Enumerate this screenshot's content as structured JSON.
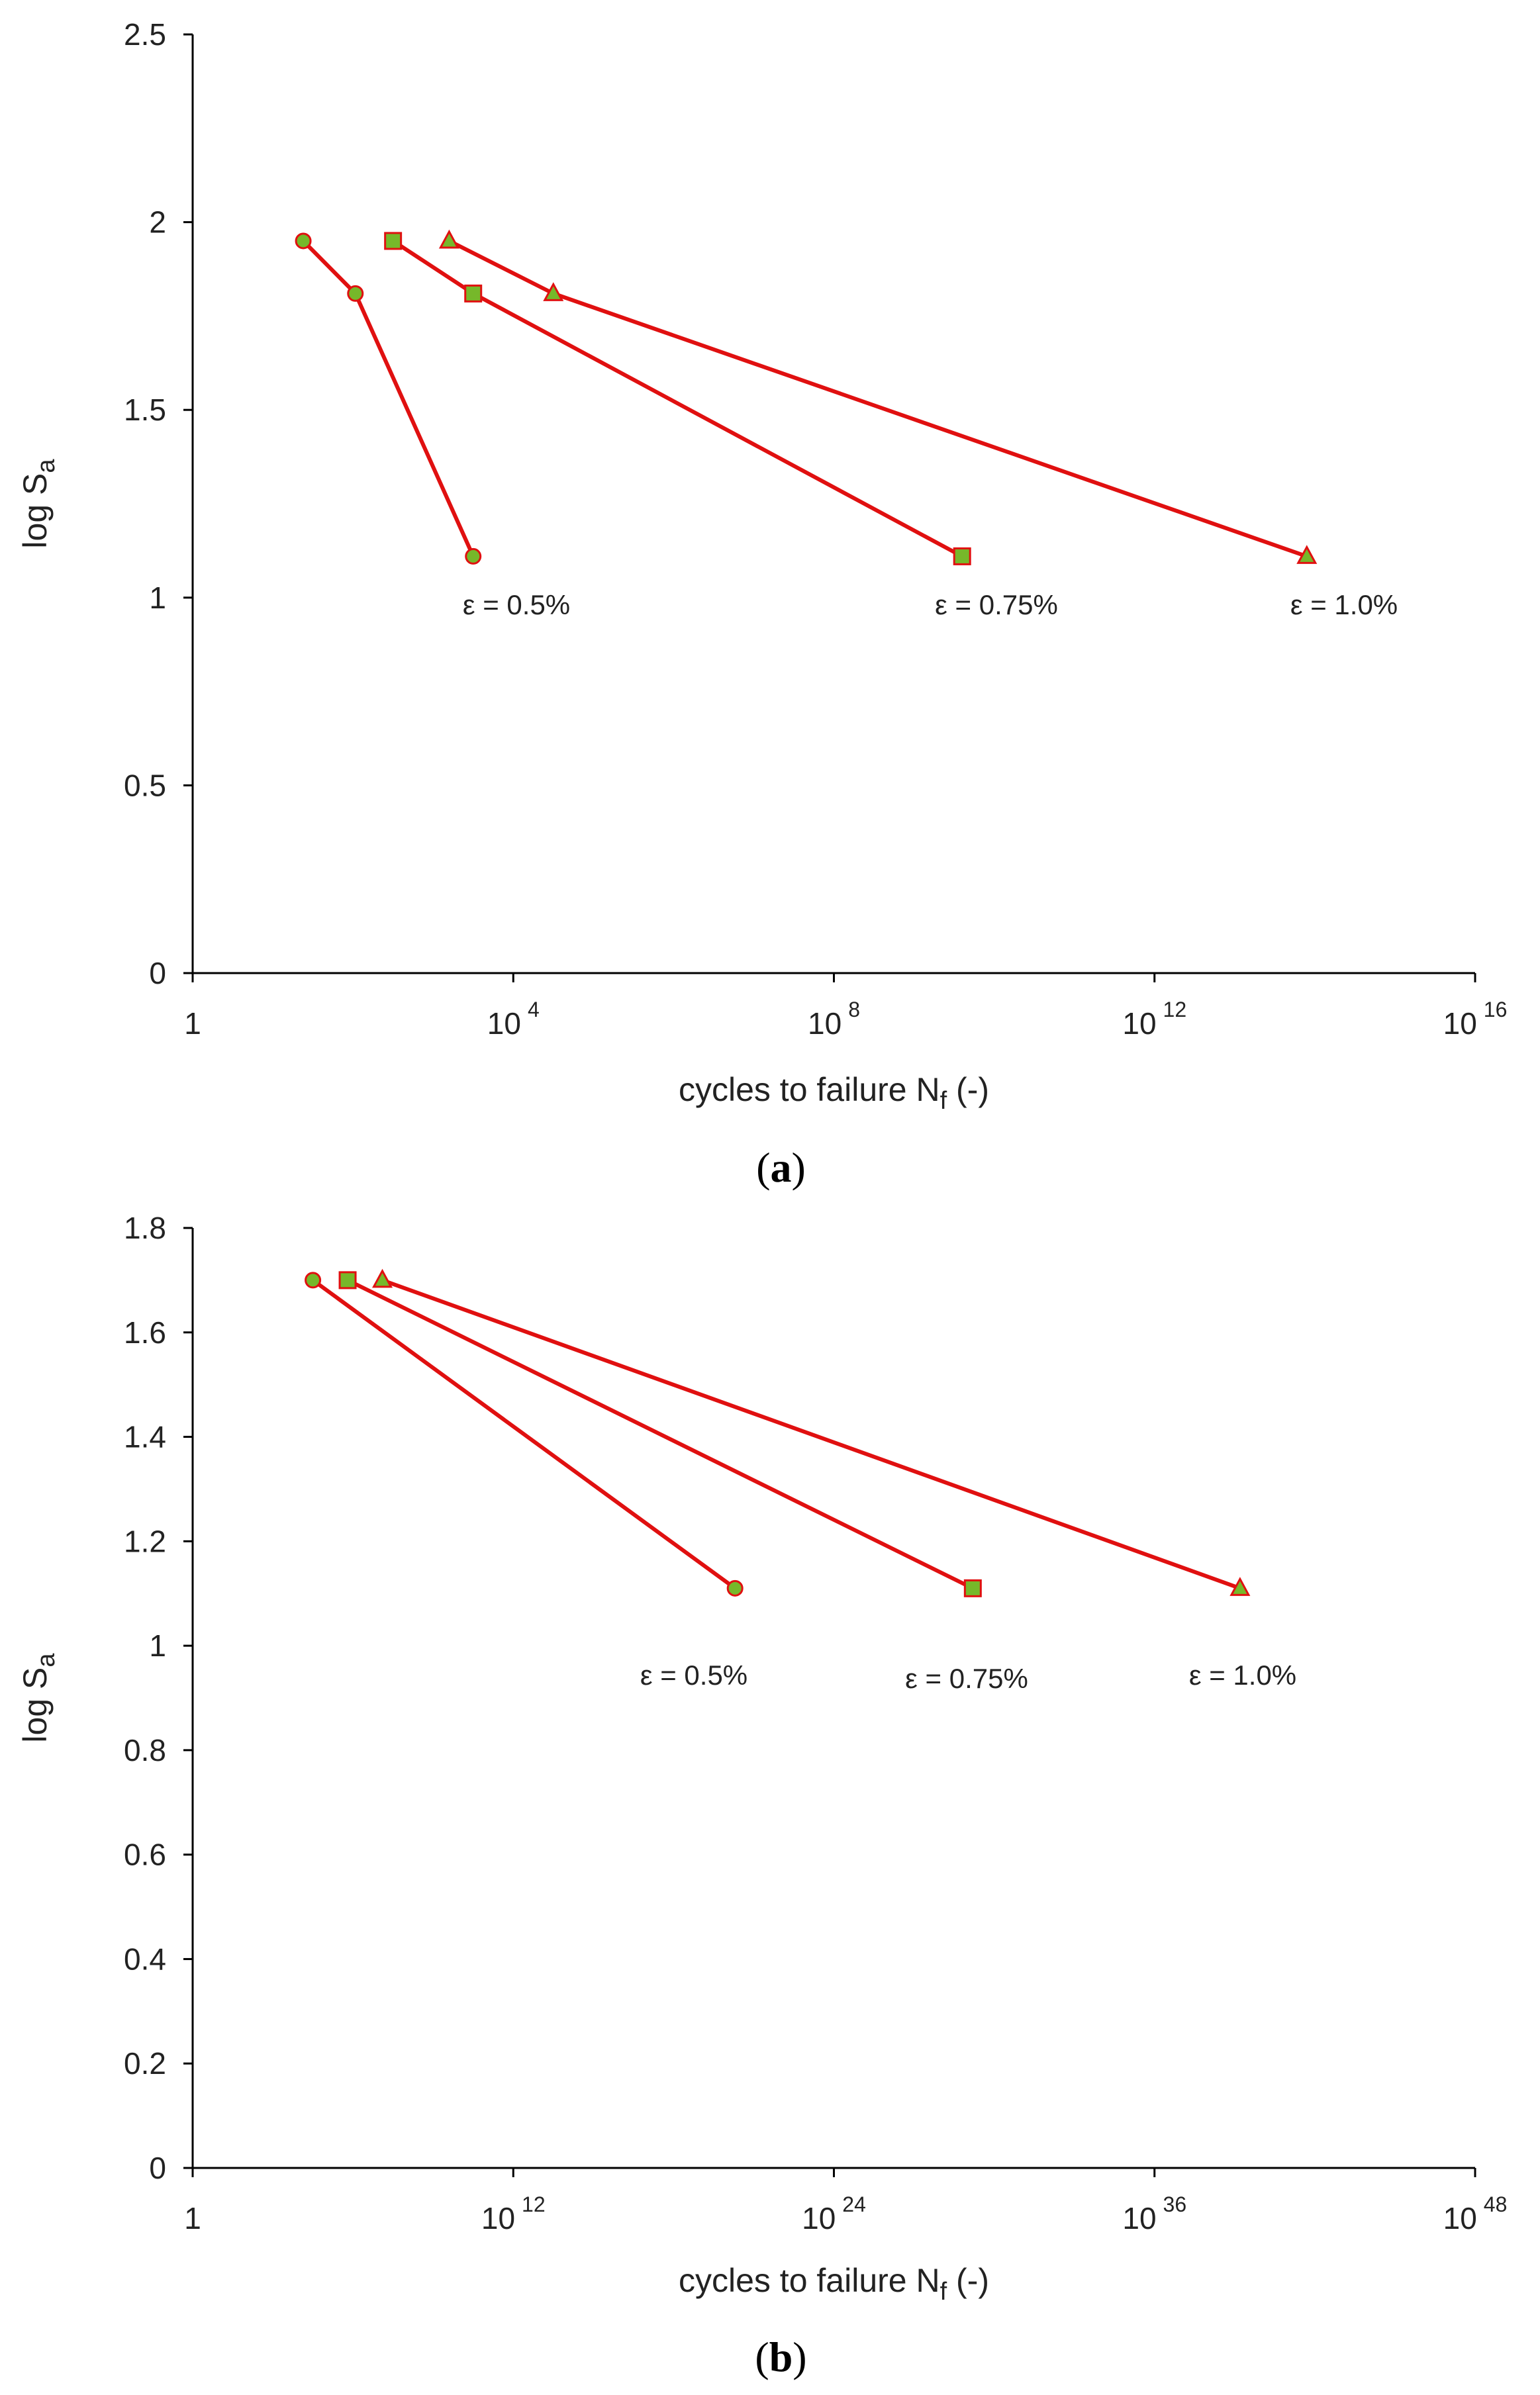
{
  "colors": {
    "line": "#e01010",
    "marker_fill": "#76b82a",
    "axis": "#000000"
  },
  "chart_data": [
    {
      "type": "line",
      "panel_label": "a",
      "xscale": "log10",
      "xlim_exp": [
        0,
        16
      ],
      "x_ticks": [
        {
          "base": "1",
          "exp": ""
        },
        {
          "base": "10",
          "exp": "4"
        },
        {
          "base": "10",
          "exp": "8"
        },
        {
          "base": "10",
          "exp": "12"
        },
        {
          "base": "10",
          "exp": "16"
        }
      ],
      "ylim": [
        0,
        2.5
      ],
      "y_ticks": [
        "0",
        "0.5",
        "1",
        "1.5",
        "2",
        "2.5"
      ],
      "xlabel": {
        "main": "cycles to failure N",
        "sub": "f",
        "tail": " (-)"
      },
      "ylabel": {
        "main": "log S",
        "sub": "a"
      },
      "series": [
        {
          "name": "ε = 0.5%",
          "marker": "circle",
          "points": [
            {
              "x_exp": 1.38,
              "y": 1.95
            },
            {
              "x_exp": 2.03,
              "y": 1.81
            },
            {
              "x_exp": 3.5,
              "y": 1.11
            }
          ]
        },
        {
          "name": "ε = 0.75%",
          "marker": "square",
          "points": [
            {
              "x_exp": 2.5,
              "y": 1.95
            },
            {
              "x_exp": 3.5,
              "y": 1.81
            },
            {
              "x_exp": 9.6,
              "y": 1.11
            }
          ]
        },
        {
          "name": "ε = 1.0%",
          "marker": "triangle",
          "points": [
            {
              "x_exp": 3.2,
              "y": 1.95
            },
            {
              "x_exp": 4.5,
              "y": 1.81
            },
            {
              "x_exp": 13.9,
              "y": 1.11
            }
          ]
        }
      ]
    },
    {
      "type": "line",
      "panel_label": "b",
      "xscale": "log10",
      "xlim_exp": [
        0,
        48
      ],
      "x_ticks": [
        {
          "base": "1",
          "exp": ""
        },
        {
          "base": "10",
          "exp": "12"
        },
        {
          "base": "10",
          "exp": "24"
        },
        {
          "base": "10",
          "exp": "36"
        },
        {
          "base": "10",
          "exp": "48"
        }
      ],
      "ylim": [
        0,
        1.8
      ],
      "y_ticks": [
        "0",
        "0.2",
        "0.4",
        "0.6",
        "0.8",
        "1",
        "1.2",
        "1.4",
        "1.6",
        "1.8"
      ],
      "xlabel": {
        "main": "cycles to failure N",
        "sub": "f",
        "tail": " (-)"
      },
      "ylabel": {
        "main": "log S",
        "sub": "a"
      },
      "series": [
        {
          "name": "ε = 0.5%",
          "marker": "circle",
          "points": [
            {
              "x_exp": 4.5,
              "y": 1.7
            },
            {
              "x_exp": 20.3,
              "y": 1.11
            }
          ]
        },
        {
          "name": "ε = 0.75%",
          "marker": "square",
          "points": [
            {
              "x_exp": 5.8,
              "y": 1.7
            },
            {
              "x_exp": 29.2,
              "y": 1.11
            }
          ]
        },
        {
          "name": "ε = 1.0%",
          "marker": "triangle",
          "points": [
            {
              "x_exp": 7.1,
              "y": 1.7
            },
            {
              "x_exp": 39.2,
              "y": 1.11
            }
          ]
        }
      ]
    }
  ]
}
